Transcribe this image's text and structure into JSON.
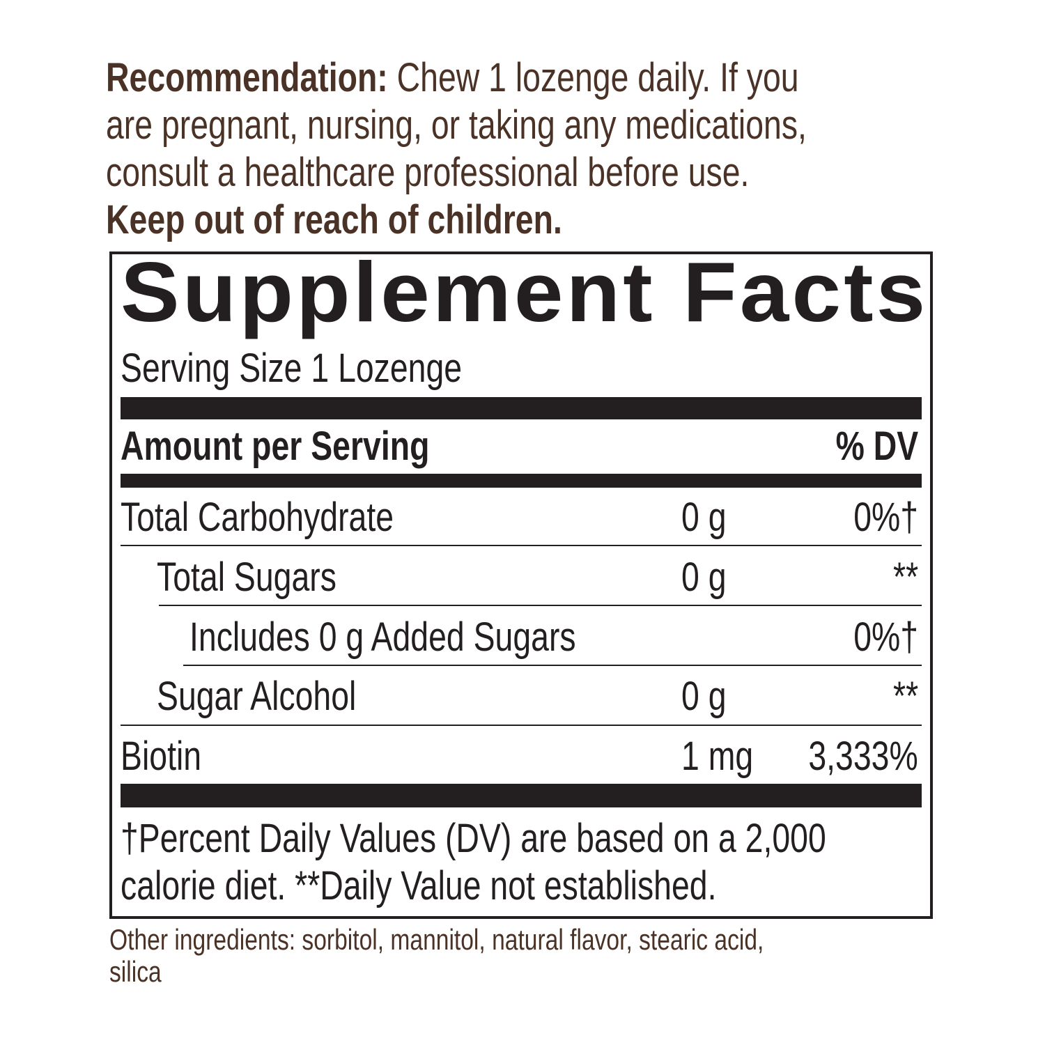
{
  "recommendation": {
    "label": "Recommendation:",
    "line1_rest": " Chew 1 lozenge daily. If you",
    "line2": "are pregnant, nursing, or taking any medications,",
    "line3": "consult a healthcare professional before use.",
    "warning": "Keep out of reach of children."
  },
  "facts": {
    "title": "Supplement Facts",
    "serving_size": "Serving Size 1 Lozenge",
    "amount_header": "Amount per Serving",
    "dv_header": "% DV",
    "rows": [
      {
        "name": "Total Carbohydrate",
        "amount": "0 g",
        "dv": "0%†"
      },
      {
        "name": "Total Sugars",
        "amount": "0 g",
        "dv": "**"
      },
      {
        "name": "Includes 0 g Added Sugars",
        "amount": "",
        "dv": "0%†"
      },
      {
        "name": "Sugar Alcohol",
        "amount": "0 g",
        "dv": "**"
      },
      {
        "name": "Biotin",
        "amount": "1 mg",
        "dv": "3,333%"
      }
    ],
    "footnote_line1": "†Percent Daily Values (DV) are based on a 2,000",
    "footnote_line2": "calorie diet. **Daily Value not established."
  },
  "other_ingredients": {
    "line1": "Other ingredients: sorbitol, mannitol, natural flavor, stearic acid,",
    "line2": "silica"
  },
  "colors": {
    "text_brown": "#4a3226",
    "label_black": "#231f20"
  }
}
